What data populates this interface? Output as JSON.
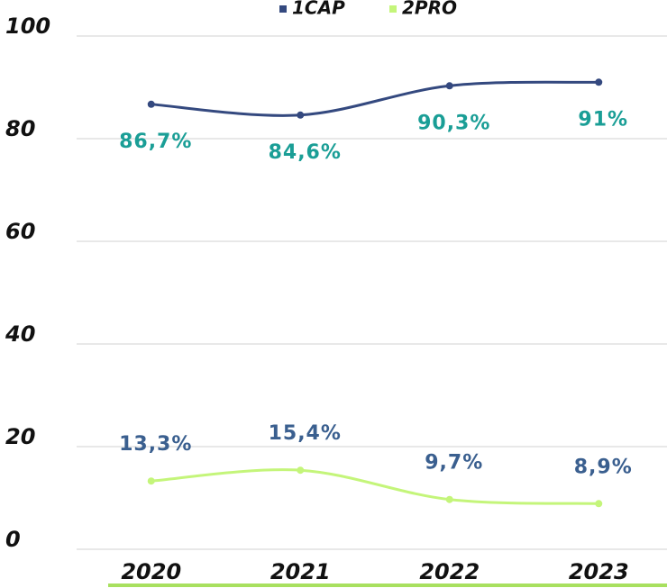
{
  "chart_data": {
    "type": "line",
    "categories": [
      "2020",
      "2021",
      "2022",
      "2023"
    ],
    "series": [
      {
        "name": "1CAP",
        "color": "#34497f",
        "values": [
          86.7,
          84.6,
          90.3,
          91
        ],
        "value_labels": [
          "86,7%",
          "84,6%",
          "90,3%",
          "91%"
        ],
        "label_color": "#1a9e96"
      },
      {
        "name": "2PRO",
        "color": "#c4f57a",
        "values": [
          13.3,
          15.4,
          9.7,
          8.9
        ],
        "value_labels": [
          "13,3%",
          "15,4%",
          "9,7%",
          "8,9%"
        ],
        "label_color": "#3a5f8f"
      }
    ],
    "ylim": [
      0,
      100
    ],
    "yticks": [
      0,
      20,
      40,
      60,
      80,
      100
    ],
    "grid": true,
    "legend": "top"
  }
}
